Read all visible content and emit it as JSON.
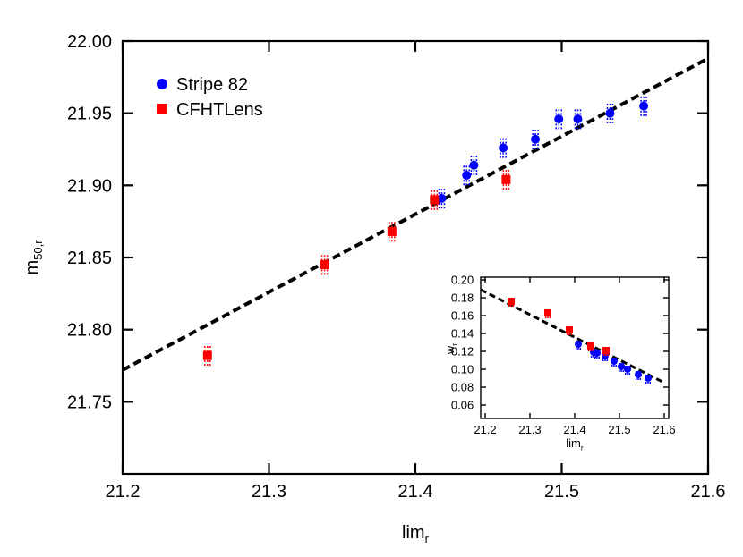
{
  "chart_data": [
    {
      "type": "scatter",
      "xlabel": "lim",
      "xlabel_sub": "r",
      "ylabel": "m",
      "ylabel_sub": "50,r",
      "xlim": [
        21.2,
        21.6
      ],
      "xticks": [
        21.2,
        21.3,
        21.4,
        21.5,
        21.6
      ],
      "ylim": [
        21.7,
        22.0
      ],
      "yticks": [
        21.75,
        {
          "value": 21.8,
          "label": "21.80"
        },
        21.85,
        {
          "value": 21.9,
          "label": "21.90"
        },
        21.95,
        {
          "value": 22.0,
          "label": "22.00"
        }
      ],
      "legend": "upper-left",
      "series": [
        {
          "name": "Stripe 82",
          "color": "#0000ff",
          "marker": "circle",
          "x": [
            21.418,
            21.435,
            21.44,
            21.46,
            21.482,
            21.498,
            21.511,
            21.533,
            21.556
          ],
          "values": [
            21.891,
            21.907,
            21.914,
            21.926,
            21.932,
            21.946,
            21.946,
            21.95,
            21.955
          ],
          "errors": [
            0.007,
            0.007,
            0.007,
            0.007,
            0.007,
            0.007,
            0.007,
            0.007,
            0.007
          ]
        },
        {
          "name": "CFHTLens",
          "color": "#ff0000",
          "marker": "square",
          "x": [
            21.258,
            21.338,
            21.384,
            21.413,
            21.462
          ],
          "values": [
            21.782,
            21.845,
            21.868,
            21.89,
            21.904
          ],
          "errors": [
            0.007,
            0.007,
            0.007,
            0.007,
            0.007
          ]
        }
      ],
      "fit_line": {
        "color": "#000000",
        "x": [
          21.2,
          21.6
        ],
        "values": [
          21.772,
          21.988
        ]
      }
    },
    {
      "type": "scatter",
      "xlabel": "lim",
      "xlabel_sub": "r",
      "ylabel": "w",
      "ylabel_sub": "r",
      "xlim": [
        21.19,
        21.61
      ],
      "xticks": [
        21.2,
        21.3,
        21.4,
        21.5,
        21.6
      ],
      "ylim": [
        0.045,
        0.203
      ],
      "yticks": [
        0.06,
        0.08,
        {
          "value": 0.1,
          "label": "0.10"
        },
        0.12,
        0.14,
        0.16,
        0.18,
        {
          "value": 0.2,
          "label": "0.20"
        }
      ],
      "series": [
        {
          "color": "#0000ff",
          "marker": "circle",
          "x": [
            21.408,
            21.442,
            21.45,
            21.468,
            21.488,
            21.504,
            21.518,
            21.542,
            21.564
          ],
          "values": [
            0.128,
            0.119,
            0.118,
            0.115,
            0.109,
            0.103,
            0.1,
            0.094,
            0.09
          ],
          "errors": [
            0.006,
            0.006,
            0.006,
            0.006,
            0.006,
            0.006,
            0.006,
            0.006,
            0.006
          ]
        },
        {
          "color": "#ff0000",
          "marker": "square",
          "x": [
            21.258,
            21.34,
            21.388,
            21.436,
            21.47
          ],
          "values": [
            0.176,
            0.163,
            0.144,
            0.126,
            0.121
          ],
          "errors": [
            0.006,
            0.006,
            0.006,
            0.006,
            0.006
          ]
        }
      ],
      "fit_line": {
        "color": "#000000",
        "x": [
          21.19,
          21.6
        ],
        "values": [
          0.189,
          0.085
        ]
      }
    }
  ]
}
